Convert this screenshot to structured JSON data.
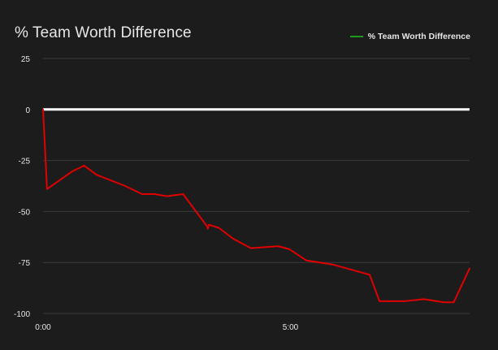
{
  "chart_data": {
    "type": "line",
    "title": "% Team Worth Difference",
    "xlabel": "",
    "ylabel": "",
    "ylim": [
      -100,
      25
    ],
    "yticks": [
      25,
      0,
      -25,
      -50,
      -75,
      -100
    ],
    "ytick_labels": [
      "25",
      "0",
      "-25",
      "-50",
      "-75",
      "-100"
    ],
    "xlim": [
      0,
      8.62
    ],
    "xticks": [
      0,
      5
    ],
    "xtick_labels": [
      "0:00",
      "5:00"
    ],
    "grid": true,
    "legend_position": "top-right",
    "zero_line": {
      "value": 0,
      "color": "#ffffff"
    },
    "series": [
      {
        "name": "% Team Worth Difference",
        "legend_color": "#1a9e1a",
        "line_color": "#e00000",
        "x": [
          0,
          0.08,
          0.58,
          0.83,
          1.08,
          1.66,
          2.0,
          2.25,
          2.5,
          2.83,
          3.32,
          3.33,
          3.35,
          3.55,
          3.85,
          4.2,
          4.75,
          4.98,
          5.32,
          5.85,
          6.6,
          6.8,
          7.3,
          7.7,
          8.1,
          8.3,
          8.62
        ],
        "y": [
          0,
          -39,
          -30.5,
          -27.5,
          -32,
          -37.5,
          -41.5,
          -41.5,
          -42.5,
          -41.5,
          -57.5,
          -58.5,
          -56.5,
          -58,
          -63.5,
          -68,
          -67,
          -68.5,
          -74,
          -76,
          -81,
          -94,
          -94,
          -93,
          -94.5,
          -94.5,
          -78
        ]
      }
    ]
  }
}
